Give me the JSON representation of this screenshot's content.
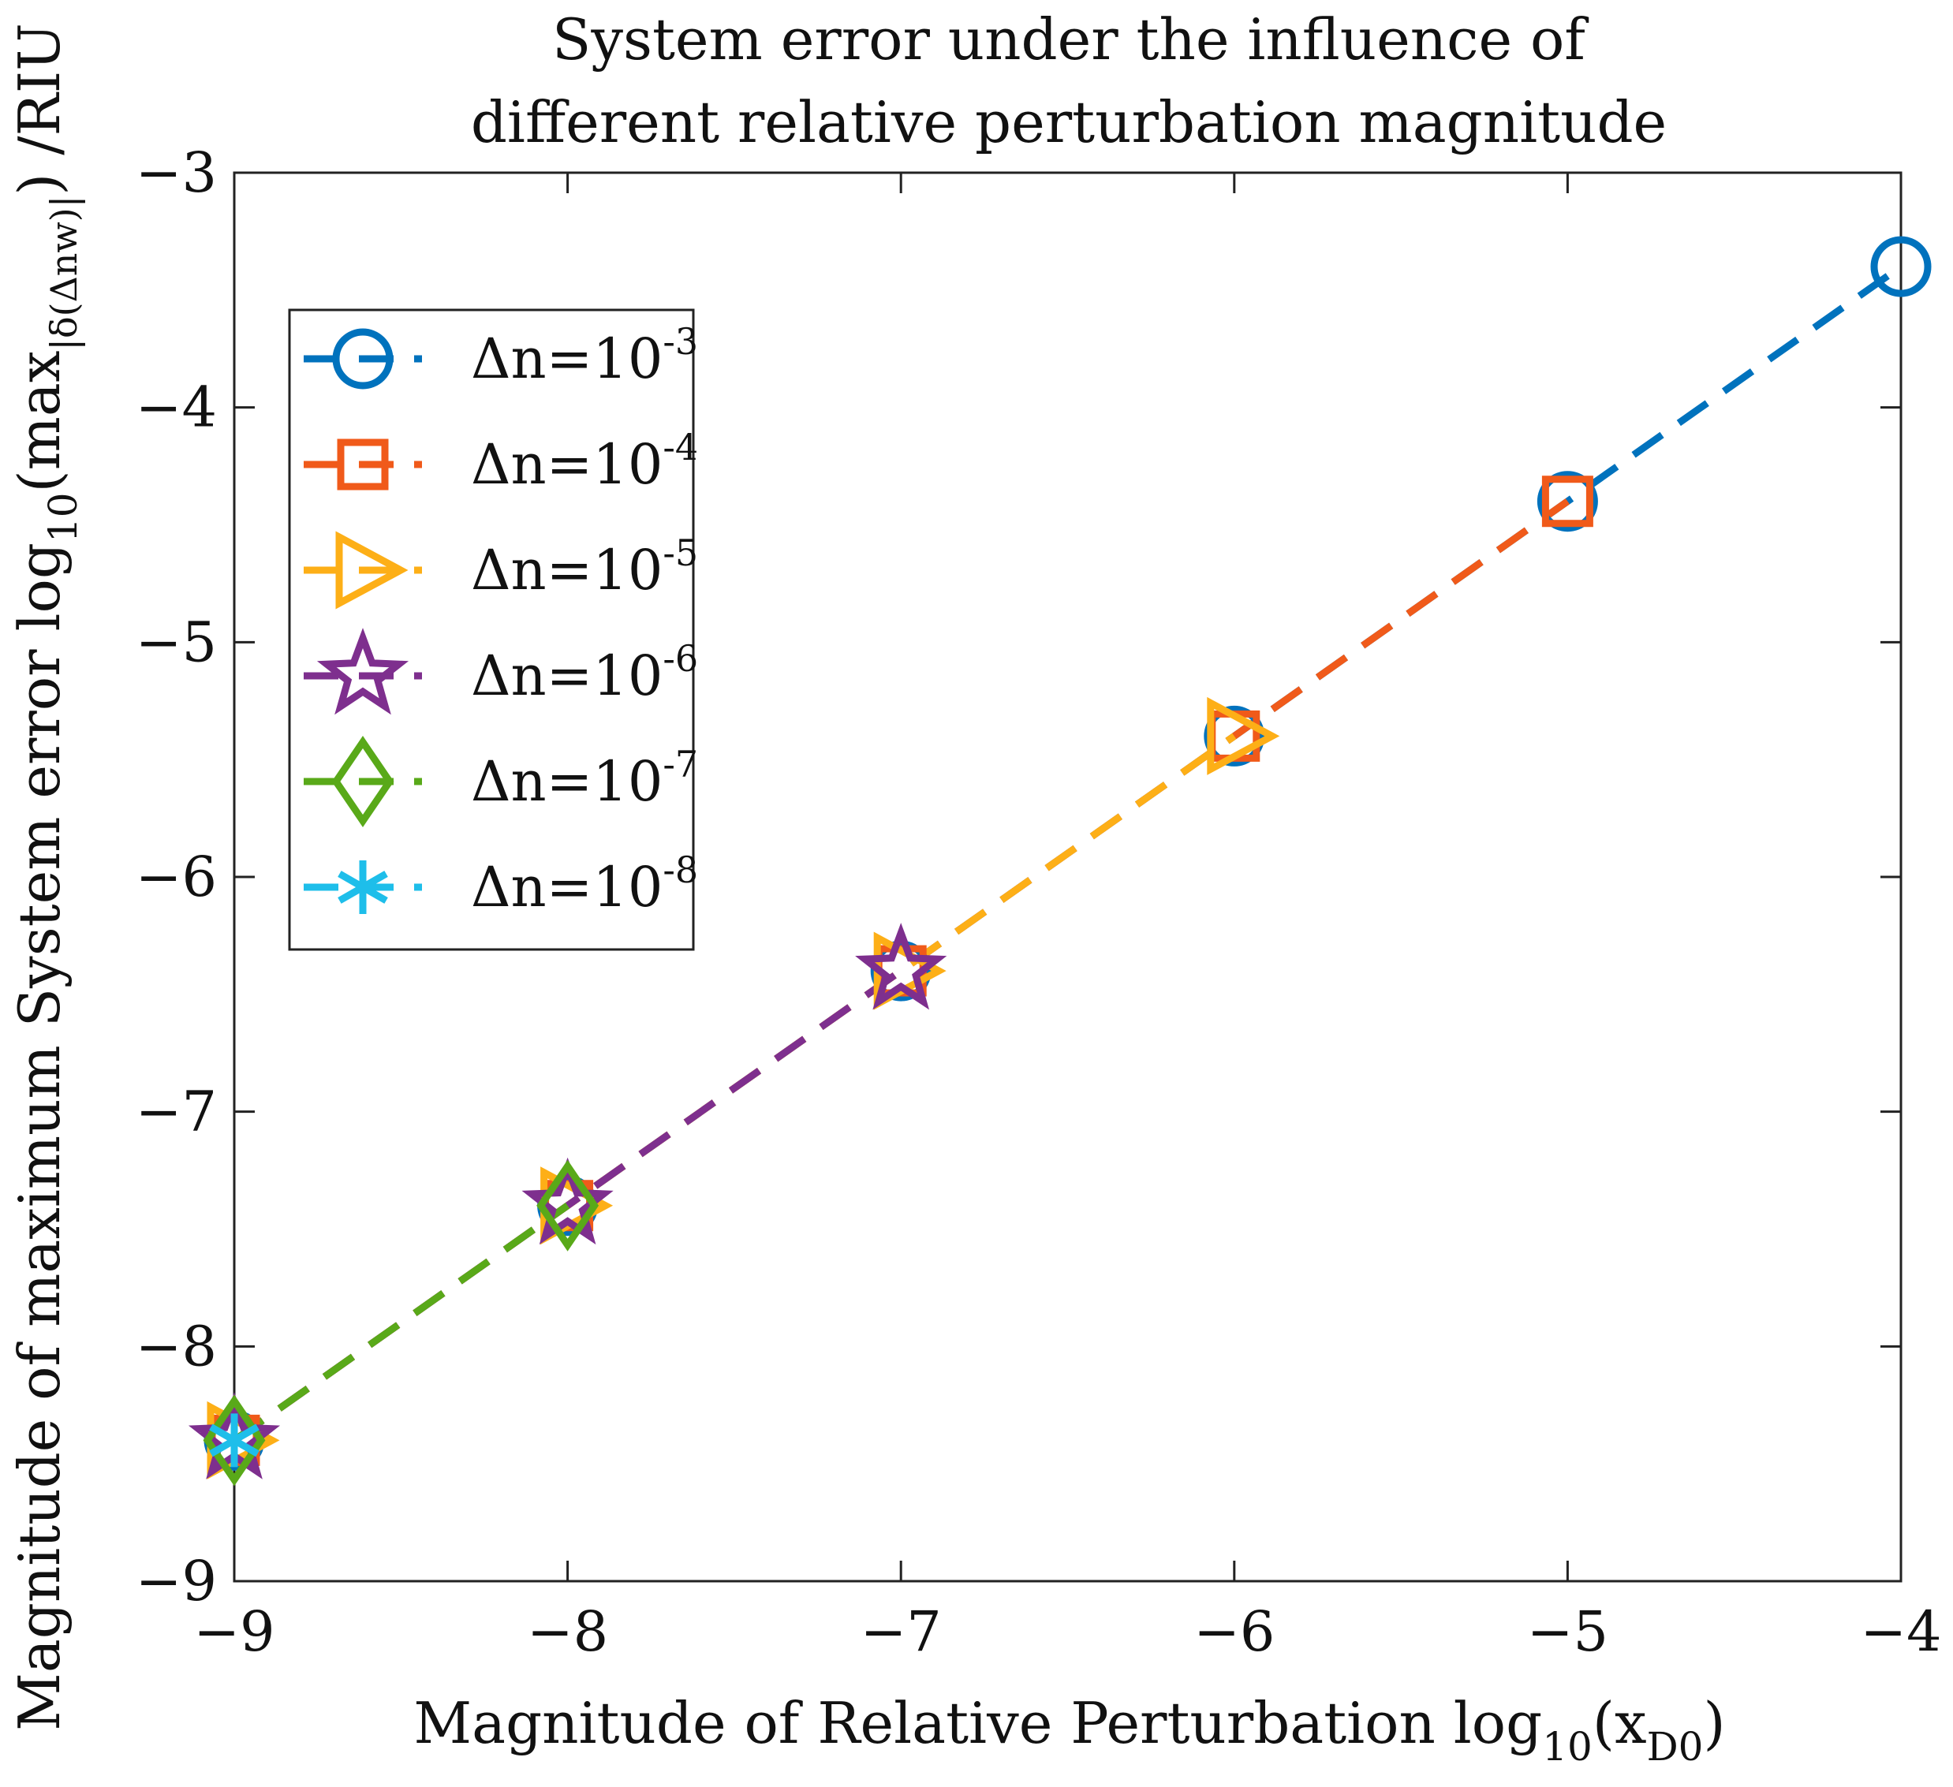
{
  "chart_data": {
    "type": "line",
    "title": [
      "System error under the influence of",
      "different relative perturbation magnitude"
    ],
    "xlabel": {
      "main": "Magnitude of Relative Perturbation log",
      "sub1": "10",
      "paren_open": "(x",
      "sub2": "D0",
      "paren_close": ")"
    },
    "ylabel": {
      "main": "Magnitude of maximum System error log",
      "sub1": "10",
      "mid": "(max",
      "sub2": "|δ(Δnw)|",
      "end": ") /RIU"
    },
    "xlim": [
      -9,
      -4
    ],
    "ylim": [
      -9,
      -3
    ],
    "xticks": [
      -9,
      -8,
      -7,
      -6,
      -5,
      -4
    ],
    "yticks": [
      -9,
      -8,
      -7,
      -6,
      -5,
      -4,
      -3
    ],
    "xtick_labels": [
      "−9",
      "−8",
      "−7",
      "−6",
      "−5",
      "−4"
    ],
    "ytick_labels": [
      "−9",
      "−8",
      "−7",
      "−6",
      "−5",
      "−4",
      "−3"
    ],
    "legend_position": "upper-left",
    "line_style": "dashed",
    "series": [
      {
        "name": "Δn=10",
        "exp": "-3",
        "marker": "circle",
        "color": "#0072BD",
        "x": [
          -9,
          -8,
          -7,
          -6,
          -5,
          -4
        ],
        "y": [
          -8.4,
          -7.4,
          -6.4,
          -5.4,
          -4.4,
          -3.4
        ]
      },
      {
        "name": "Δn=10",
        "exp": "-4",
        "marker": "square",
        "color": "#F05A1A",
        "x": [
          -9,
          -8,
          -7,
          -6,
          -5
        ],
        "y": [
          -8.4,
          -7.4,
          -6.4,
          -5.4,
          -4.4
        ]
      },
      {
        "name": "Δn=10",
        "exp": "-5",
        "marker": "triangle-right",
        "color": "#FDAF17",
        "x": [
          -9,
          -8,
          -7,
          -6
        ],
        "y": [
          -8.4,
          -7.4,
          -6.4,
          -5.4
        ]
      },
      {
        "name": "Δn=10",
        "exp": "-6",
        "marker": "star",
        "color": "#7E2F8E",
        "x": [
          -9,
          -8,
          -7
        ],
        "y": [
          -8.4,
          -7.4,
          -6.4
        ]
      },
      {
        "name": "Δn=10",
        "exp": "-7",
        "marker": "diamond",
        "color": "#59A919",
        "x": [
          -9,
          -8
        ],
        "y": [
          -8.4,
          -7.4
        ]
      },
      {
        "name": "Δn=10",
        "exp": "-8",
        "marker": "asterisk",
        "color": "#1EBEEA",
        "x": [
          -9
        ],
        "y": [
          -8.4
        ]
      }
    ]
  }
}
